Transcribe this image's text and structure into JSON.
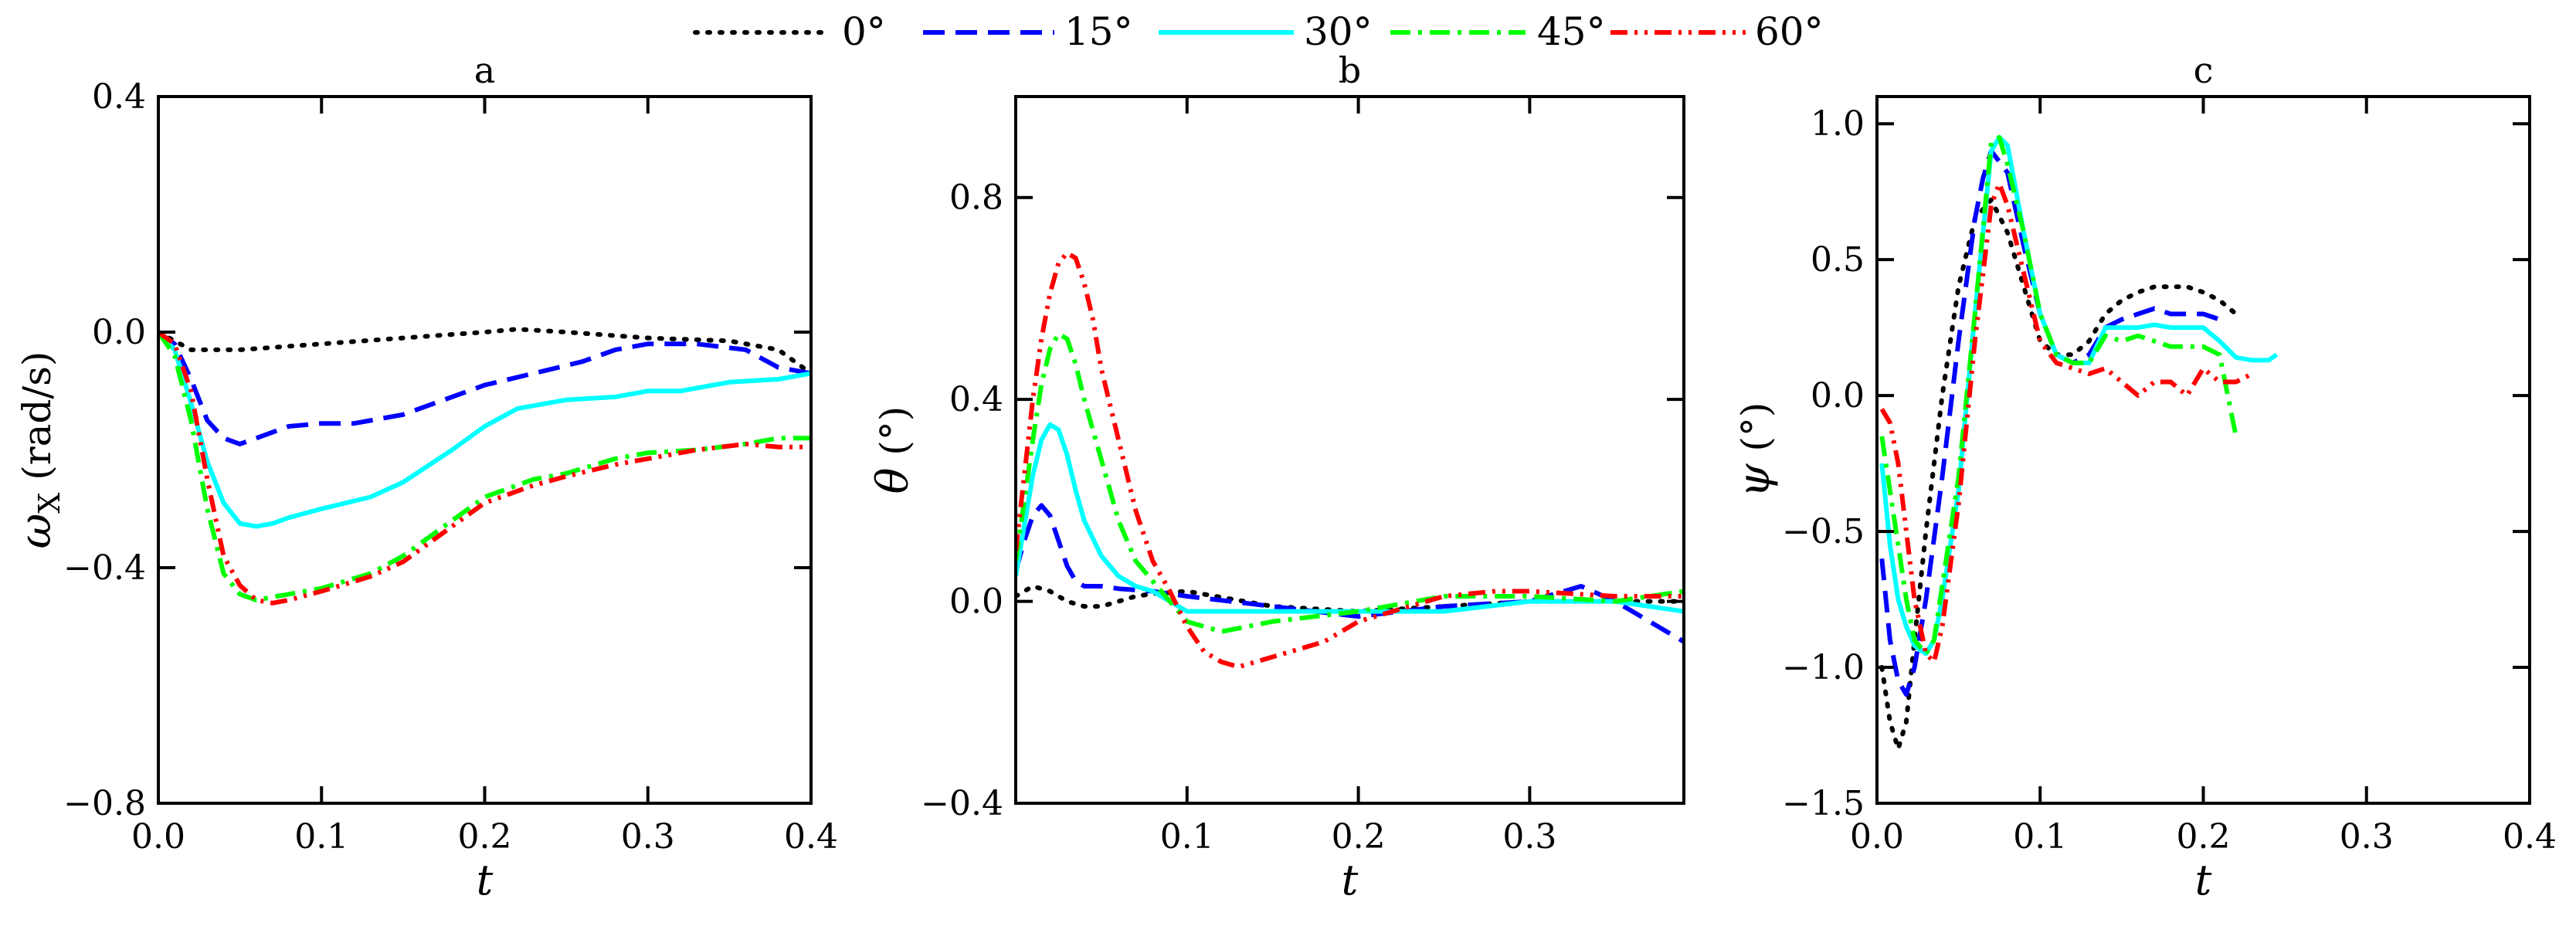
{
  "legend": [
    {
      "label": "0°",
      "color": "#000000",
      "dash": "dot"
    },
    {
      "label": "15°",
      "color": "#0000ff",
      "dash": "dash"
    },
    {
      "label": "30°",
      "color": "#00ffff",
      "dash": "solid"
    },
    {
      "label": "45°",
      "color": "#00ff00",
      "dash": "dashdot"
    },
    {
      "label": "60°",
      "color": "#ff0000",
      "dash": "dashdotdot"
    }
  ],
  "chart_data": [
    {
      "type": "line",
      "title": "a",
      "xlabel": "t",
      "ylabel": "ω",
      "ylabel_sub": "X",
      "ylabel_unit": " (rad/s)",
      "xlim": [
        0,
        0.4
      ],
      "ylim": [
        -0.8,
        0.4
      ],
      "xticks": [
        0,
        0.1,
        0.2,
        0.3,
        0.4
      ],
      "xtick_labels": [
        "0.0",
        "0.1",
        "0.2",
        "0.3",
        "0.4"
      ],
      "yticks": [
        -0.8,
        -0.4,
        0.0,
        0.4
      ],
      "ytick_labels": [
        "−0.8",
        "−0.4",
        "0.0",
        "0.4"
      ],
      "series": [
        {
          "x": [
            0,
            0.02,
            0.05,
            0.1,
            0.15,
            0.2,
            0.22,
            0.25,
            0.3,
            0.35,
            0.38,
            0.4
          ],
          "y": [
            0,
            -0.03,
            -0.03,
            -0.02,
            -0.01,
            0.0,
            0.005,
            0.0,
            -0.01,
            -0.015,
            -0.03,
            -0.07
          ]
        },
        {
          "x": [
            0,
            0.01,
            0.02,
            0.03,
            0.04,
            0.05,
            0.06,
            0.08,
            0.1,
            0.12,
            0.15,
            0.18,
            0.2,
            0.23,
            0.26,
            0.28,
            0.3,
            0.33,
            0.36,
            0.38,
            0.4
          ],
          "y": [
            0,
            -0.02,
            -0.08,
            -0.15,
            -0.18,
            -0.19,
            -0.18,
            -0.16,
            -0.155,
            -0.155,
            -0.14,
            -0.11,
            -0.09,
            -0.07,
            -0.05,
            -0.03,
            -0.02,
            -0.02,
            -0.03,
            -0.06,
            -0.07
          ]
        },
        {
          "x": [
            0,
            0.01,
            0.02,
            0.03,
            0.04,
            0.05,
            0.06,
            0.07,
            0.08,
            0.1,
            0.13,
            0.15,
            0.18,
            0.2,
            0.22,
            0.25,
            0.28,
            0.3,
            0.32,
            0.35,
            0.38,
            0.4
          ],
          "y": [
            0,
            -0.03,
            -0.12,
            -0.22,
            -0.29,
            -0.325,
            -0.33,
            -0.325,
            -0.315,
            -0.3,
            -0.28,
            -0.255,
            -0.2,
            -0.16,
            -0.13,
            -0.115,
            -0.11,
            -0.1,
            -0.1,
            -0.085,
            -0.08,
            -0.07
          ]
        },
        {
          "x": [
            0,
            0.01,
            0.02,
            0.03,
            0.04,
            0.05,
            0.06,
            0.07,
            0.08,
            0.1,
            0.13,
            0.15,
            0.18,
            0.2,
            0.23,
            0.25,
            0.28,
            0.3,
            0.33,
            0.36,
            0.38,
            0.4
          ],
          "y": [
            0,
            -0.04,
            -0.15,
            -0.3,
            -0.41,
            -0.445,
            -0.455,
            -0.45,
            -0.445,
            -0.435,
            -0.41,
            -0.38,
            -0.32,
            -0.28,
            -0.25,
            -0.24,
            -0.215,
            -0.205,
            -0.2,
            -0.19,
            -0.18,
            -0.18
          ]
        },
        {
          "x": [
            0,
            0.01,
            0.02,
            0.03,
            0.04,
            0.05,
            0.06,
            0.07,
            0.08,
            0.1,
            0.13,
            0.15,
            0.18,
            0.2,
            0.23,
            0.25,
            0.28,
            0.3,
            0.33,
            0.36,
            0.38,
            0.4
          ],
          "y": [
            0,
            -0.02,
            -0.1,
            -0.25,
            -0.38,
            -0.43,
            -0.455,
            -0.46,
            -0.455,
            -0.44,
            -0.415,
            -0.39,
            -0.33,
            -0.29,
            -0.26,
            -0.245,
            -0.225,
            -0.215,
            -0.2,
            -0.19,
            -0.195,
            -0.195
          ]
        }
      ]
    },
    {
      "type": "line",
      "title": "b",
      "xlabel": "t",
      "ylabel": "θ",
      "ylabel_sub": "",
      "ylabel_unit": " (°)",
      "xlim": [
        0,
        0.39
      ],
      "ylim": [
        -0.4,
        1.0
      ],
      "xticks": [
        0.1,
        0.2,
        0.3
      ],
      "xtick_labels": [
        "0.1",
        "0.2",
        "0.3"
      ],
      "yticks": [
        -0.4,
        0.0,
        0.4,
        0.8
      ],
      "ytick_labels": [
        "−0.4",
        "0.0",
        "0.4",
        "0.8"
      ],
      "series": [
        {
          "x": [
            0,
            0.01,
            0.02,
            0.03,
            0.04,
            0.05,
            0.06,
            0.07,
            0.08,
            0.1,
            0.15,
            0.2,
            0.25,
            0.3,
            0.35,
            0.39
          ],
          "y": [
            0.01,
            0.03,
            0.02,
            0.0,
            -0.01,
            -0.01,
            0.0,
            0.01,
            0.015,
            0.02,
            -0.01,
            -0.02,
            -0.01,
            0.0,
            0.0,
            0.0
          ]
        },
        {
          "x": [
            0,
            0.005,
            0.01,
            0.015,
            0.02,
            0.025,
            0.03,
            0.035,
            0.04,
            0.05,
            0.06,
            0.08,
            0.1,
            0.15,
            0.2,
            0.25,
            0.3,
            0.33,
            0.35,
            0.37,
            0.39
          ],
          "y": [
            0.06,
            0.12,
            0.17,
            0.19,
            0.17,
            0.12,
            0.07,
            0.04,
            0.03,
            0.03,
            0.025,
            0.02,
            0.01,
            -0.01,
            -0.03,
            -0.01,
            0.0,
            0.03,
            0.0,
            -0.04,
            -0.08
          ]
        },
        {
          "x": [
            0,
            0.005,
            0.01,
            0.015,
            0.02,
            0.025,
            0.03,
            0.035,
            0.04,
            0.05,
            0.06,
            0.07,
            0.08,
            0.09,
            0.1,
            0.12,
            0.15,
            0.2,
            0.25,
            0.3,
            0.35,
            0.39
          ],
          "y": [
            0.05,
            0.15,
            0.25,
            0.32,
            0.35,
            0.34,
            0.29,
            0.22,
            0.16,
            0.09,
            0.05,
            0.03,
            0.02,
            0.0,
            -0.02,
            -0.02,
            -0.02,
            -0.02,
            -0.02,
            0.0,
            0.0,
            -0.02
          ]
        },
        {
          "x": [
            0,
            0.005,
            0.01,
            0.015,
            0.02,
            0.025,
            0.03,
            0.035,
            0.04,
            0.05,
            0.06,
            0.07,
            0.08,
            0.09,
            0.1,
            0.12,
            0.15,
            0.2,
            0.25,
            0.3,
            0.35,
            0.39
          ],
          "y": [
            0.08,
            0.2,
            0.32,
            0.43,
            0.5,
            0.53,
            0.52,
            0.47,
            0.4,
            0.28,
            0.16,
            0.08,
            0.04,
            0.0,
            -0.04,
            -0.06,
            -0.04,
            -0.02,
            0.01,
            0.01,
            0.0,
            0.02
          ]
        },
        {
          "x": [
            0,
            0.005,
            0.01,
            0.015,
            0.02,
            0.025,
            0.03,
            0.035,
            0.04,
            0.045,
            0.05,
            0.06,
            0.07,
            0.08,
            0.09,
            0.1,
            0.11,
            0.12,
            0.13,
            0.15,
            0.18,
            0.2,
            0.22,
            0.25,
            0.28,
            0.3,
            0.35,
            0.39
          ],
          "y": [
            0.1,
            0.25,
            0.4,
            0.52,
            0.61,
            0.67,
            0.69,
            0.68,
            0.63,
            0.56,
            0.46,
            0.32,
            0.18,
            0.08,
            0.02,
            -0.05,
            -0.1,
            -0.12,
            -0.13,
            -0.11,
            -0.08,
            -0.04,
            -0.02,
            0.01,
            0.02,
            0.02,
            0.01,
            0.01
          ]
        }
      ]
    },
    {
      "type": "line",
      "title": "c",
      "xlabel": "t",
      "ylabel": "ψ",
      "ylabel_sub": "",
      "ylabel_unit": " (°)",
      "xlim": [
        0,
        0.4
      ],
      "ylim": [
        -1.5,
        1.1
      ],
      "xticks": [
        0,
        0.1,
        0.2,
        0.3,
        0.4
      ],
      "xtick_labels": [
        "0.0",
        "0.1",
        "0.2",
        "0.3",
        "0.4"
      ],
      "yticks": [
        -1.5,
        -1.0,
        -0.5,
        0.0,
        0.5,
        1.0
      ],
      "ytick_labels": [
        "−1.5",
        "−1.0",
        "−0.5",
        "0.0",
        "0.5",
        "1.0"
      ],
      "series": [
        {
          "x": [
            0.003,
            0.008,
            0.013,
            0.018,
            0.023,
            0.03,
            0.04,
            0.05,
            0.06,
            0.07,
            0.08,
            0.09,
            0.1,
            0.11,
            0.12,
            0.13,
            0.14,
            0.15,
            0.16,
            0.17,
            0.18,
            0.19,
            0.2,
            0.21,
            0.22
          ],
          "y": [
            -1.0,
            -1.2,
            -1.3,
            -1.2,
            -0.9,
            -0.5,
            0.0,
            0.4,
            0.65,
            0.72,
            0.6,
            0.4,
            0.2,
            0.15,
            0.15,
            0.2,
            0.3,
            0.35,
            0.38,
            0.4,
            0.4,
            0.4,
            0.38,
            0.35,
            0.3
          ]
        },
        {
          "x": [
            0.003,
            0.008,
            0.013,
            0.018,
            0.023,
            0.03,
            0.04,
            0.05,
            0.06,
            0.065,
            0.07,
            0.08,
            0.09,
            0.1,
            0.11,
            0.12,
            0.13,
            0.14,
            0.15,
            0.16,
            0.17,
            0.18,
            0.19,
            0.2,
            0.21
          ],
          "y": [
            -0.6,
            -0.9,
            -1.05,
            -1.1,
            -1.0,
            -0.75,
            -0.3,
            0.2,
            0.65,
            0.8,
            0.9,
            0.82,
            0.55,
            0.3,
            0.15,
            0.12,
            0.15,
            0.25,
            0.28,
            0.3,
            0.32,
            0.3,
            0.3,
            0.3,
            0.28
          ]
        },
        {
          "x": [
            0.003,
            0.008,
            0.013,
            0.018,
            0.023,
            0.03,
            0.035,
            0.04,
            0.05,
            0.06,
            0.07,
            0.075,
            0.08,
            0.09,
            0.1,
            0.11,
            0.12,
            0.13,
            0.14,
            0.15,
            0.16,
            0.17,
            0.18,
            0.19,
            0.2,
            0.21,
            0.22,
            0.23,
            0.24,
            0.245
          ],
          "y": [
            -0.25,
            -0.55,
            -0.75,
            -0.85,
            -0.92,
            -0.95,
            -0.9,
            -0.75,
            -0.35,
            0.3,
            0.9,
            0.95,
            0.92,
            0.6,
            0.3,
            0.15,
            0.12,
            0.12,
            0.25,
            0.25,
            0.25,
            0.26,
            0.25,
            0.25,
            0.25,
            0.2,
            0.14,
            0.13,
            0.13,
            0.15
          ]
        },
        {
          "x": [
            0.003,
            0.008,
            0.013,
            0.018,
            0.023,
            0.03,
            0.035,
            0.04,
            0.05,
            0.06,
            0.07,
            0.075,
            0.08,
            0.09,
            0.1,
            0.11,
            0.12,
            0.13,
            0.14,
            0.15,
            0.16,
            0.17,
            0.18,
            0.19,
            0.2,
            0.21,
            0.215,
            0.22
          ],
          "y": [
            -0.15,
            -0.35,
            -0.55,
            -0.75,
            -0.9,
            -0.95,
            -0.9,
            -0.7,
            -0.3,
            0.3,
            0.93,
            0.95,
            0.85,
            0.6,
            0.3,
            0.15,
            0.12,
            0.12,
            0.22,
            0.2,
            0.22,
            0.2,
            0.18,
            0.18,
            0.18,
            0.15,
            0.0,
            -0.15
          ]
        },
        {
          "x": [
            0.003,
            0.008,
            0.013,
            0.018,
            0.023,
            0.03,
            0.035,
            0.04,
            0.05,
            0.06,
            0.07,
            0.075,
            0.08,
            0.09,
            0.1,
            0.11,
            0.12,
            0.13,
            0.14,
            0.15,
            0.16,
            0.17,
            0.18,
            0.19,
            0.2,
            0.21,
            0.22,
            0.23
          ],
          "y": [
            -0.05,
            -0.1,
            -0.25,
            -0.5,
            -0.75,
            -0.95,
            -0.98,
            -0.85,
            -0.4,
            0.2,
            0.7,
            0.78,
            0.7,
            0.45,
            0.2,
            0.12,
            0.1,
            0.08,
            0.1,
            0.05,
            0.0,
            0.05,
            0.05,
            0.0,
            0.1,
            0.05,
            0.05,
            0.08
          ]
        }
      ]
    }
  ]
}
